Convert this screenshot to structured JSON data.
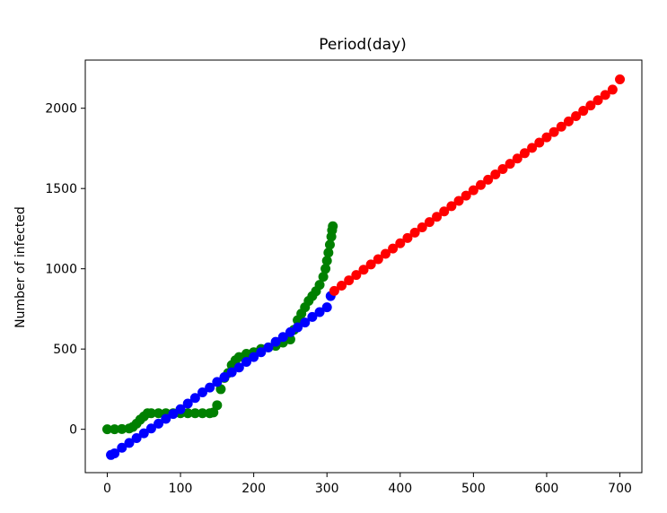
{
  "chart_data": {
    "type": "scatter",
    "title": "Period(day)",
    "xlabel": "",
    "ylabel": "Number of infected",
    "xlim": [
      -30,
      730
    ],
    "ylim": [
      -270,
      2300
    ],
    "xticks": [
      0,
      100,
      200,
      300,
      400,
      500,
      600,
      700
    ],
    "yticks": [
      0,
      500,
      1000,
      1500,
      2000
    ],
    "grid": false,
    "legend": "none",
    "series": [
      {
        "color": "#008000",
        "x": [
          0,
          10,
          20,
          30,
          35,
          40,
          45,
          50,
          55,
          60,
          70,
          80,
          90,
          100,
          110,
          120,
          130,
          140,
          145,
          150,
          155,
          160,
          165,
          170,
          175,
          180,
          190,
          200,
          210,
          220,
          230,
          240,
          250,
          255,
          260,
          265,
          270,
          275,
          280,
          285,
          290,
          295,
          298,
          300,
          302,
          304,
          306,
          307,
          308
        ],
        "y": [
          0,
          0,
          2,
          5,
          15,
          35,
          60,
          80,
          100,
          100,
          100,
          100,
          100,
          100,
          100,
          100,
          100,
          100,
          105,
          150,
          250,
          320,
          350,
          400,
          430,
          450,
          470,
          480,
          500,
          510,
          520,
          540,
          560,
          620,
          680,
          720,
          760,
          800,
          830,
          860,
          900,
          950,
          1000,
          1050,
          1100,
          1150,
          1200,
          1240,
          1265
        ]
      },
      {
        "color": "#0000ff",
        "x": [
          5,
          10,
          20,
          30,
          40,
          50,
          60,
          70,
          80,
          90,
          100,
          110,
          120,
          130,
          140,
          150,
          160,
          170,
          180,
          190,
          200,
          210,
          220,
          230,
          240,
          250,
          260,
          270,
          280,
          290,
          300,
          305
        ],
        "y": [
          -160,
          -150,
          -115,
          -85,
          -55,
          -25,
          5,
          35,
          65,
          95,
          125,
          160,
          195,
          230,
          260,
          295,
          325,
          355,
          385,
          420,
          450,
          480,
          510,
          545,
          575,
          605,
          635,
          665,
          700,
          730,
          760,
          830
        ]
      },
      {
        "color": "#ff0000",
        "x": [
          310,
          320,
          330,
          340,
          350,
          360,
          370,
          380,
          390,
          400,
          410,
          420,
          430,
          440,
          450,
          460,
          470,
          480,
          490,
          500,
          510,
          520,
          530,
          540,
          550,
          560,
          570,
          580,
          590,
          600,
          610,
          620,
          630,
          640,
          650,
          660,
          670,
          680,
          690,
          700
        ],
        "y": [
          862,
          895,
          928,
          961,
          994,
          1027,
          1060,
          1093,
          1126,
          1159,
          1192,
          1225,
          1258,
          1291,
          1324,
          1357,
          1390,
          1423,
          1456,
          1489,
          1522,
          1555,
          1588,
          1621,
          1654,
          1687,
          1720,
          1753,
          1786,
          1819,
          1852,
          1885,
          1918,
          1951,
          1984,
          2017,
          2050,
          2083,
          2116,
          2180
        ]
      }
    ]
  }
}
